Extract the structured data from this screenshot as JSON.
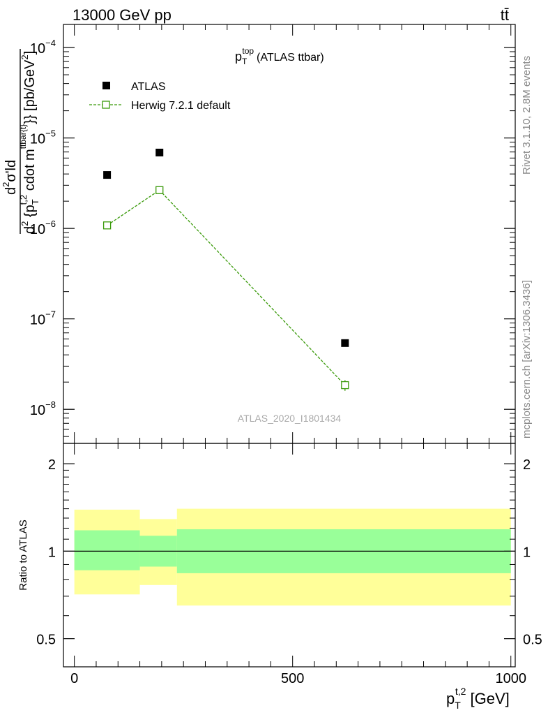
{
  "header": {
    "energy_label": "13000 GeV pp",
    "process_label": "tt̄"
  },
  "side_labels": {
    "rivet": "Rivet 3.1.10,  2.8M events",
    "mcplots": "mcplots.cern.ch [arXiv:1306.3436]"
  },
  "watermark": "ATLAS_2020_I1801434",
  "chart_data": [
    {
      "type": "scatter",
      "title_main": "p",
      "title_sub": "T",
      "title_sup": "top",
      "title_rest": "(ATLAS ttbar)",
      "yscale": "log",
      "ylim": [
        4.2e-09,
        0.00018
      ],
      "xlim": [
        -25,
        1010
      ],
      "yticks": [
        {
          "value": 0.0001,
          "base": "10",
          "exp": "−4"
        },
        {
          "value": 1e-05,
          "base": "10",
          "exp": "−5"
        },
        {
          "value": 1e-06,
          "base": "10",
          "exp": "−6"
        },
        {
          "value": 1e-07,
          "base": "10",
          "exp": "−7"
        },
        {
          "value": 1e-08,
          "base": "10",
          "exp": "−8"
        }
      ],
      "ylabel": {
        "num_pre": "d",
        "num_sup": "2",
        "num_main": "σ'ld",
        "den_a": "d",
        "den_a_sup": "2",
        "den_b": " {p",
        "den_b_sub": "T",
        "den_b_sup": "t,2",
        "den_c": " cdot m",
        "den_c_sup": "ttbar{t}",
        "den_d": "}}",
        "units_a": " [pb/GeV",
        "units_sup": "2",
        "units_b": "]"
      },
      "legend": [
        {
          "name": "ATLAS",
          "marker": "filled-square",
          "color": "#000000"
        },
        {
          "name": "Herwig 7.2.1 default",
          "marker": "open-square-dashed",
          "color": "#3a9a0a"
        }
      ],
      "series": [
        {
          "name": "ATLAS",
          "x": [
            75,
            195,
            620
          ],
          "y": [
            3.9e-06,
            6.9e-06,
            5.4e-08
          ]
        },
        {
          "name": "Herwig 7.2.1 default",
          "x": [
            75,
            195,
            620
          ],
          "y": [
            1.08e-06,
            2.65e-06,
            1.85e-08
          ],
          "yerr": [
            0.0,
            0.0,
            2.5e-09
          ]
        }
      ]
    },
    {
      "type": "area",
      "ylabel": "Ratio to ATLAS",
      "xlabel_main": "p",
      "xlabel_sub": "T",
      "xlabel_sup": "t,2",
      "xlabel_units": " [GeV]",
      "yscale": "log",
      "ylim": [
        0.4,
        2.35
      ],
      "xlim": [
        -25,
        1010
      ],
      "yticks": [
        {
          "value": 2,
          "label": "2"
        },
        {
          "value": 1,
          "label": "1"
        },
        {
          "value": 0.5,
          "label": "0.5"
        }
      ],
      "xticks": [
        {
          "value": 0,
          "label": "0"
        },
        {
          "value": 500,
          "label": "500"
        },
        {
          "value": 1000,
          "label": "1000"
        }
      ],
      "bins": [
        {
          "lo": 0,
          "hi": 150,
          "total": [
            0.71,
            1.39
          ],
          "stat": [
            0.86,
            1.18
          ]
        },
        {
          "lo": 150,
          "hi": 235,
          "total": [
            0.765,
            1.29
          ],
          "stat": [
            0.885,
            1.13
          ]
        },
        {
          "lo": 235,
          "hi": 1000,
          "total": [
            0.65,
            1.4
          ],
          "stat": [
            0.84,
            1.19
          ]
        }
      ],
      "band_colors": {
        "total": "#ffff99",
        "stat": "#99ff99"
      }
    }
  ]
}
